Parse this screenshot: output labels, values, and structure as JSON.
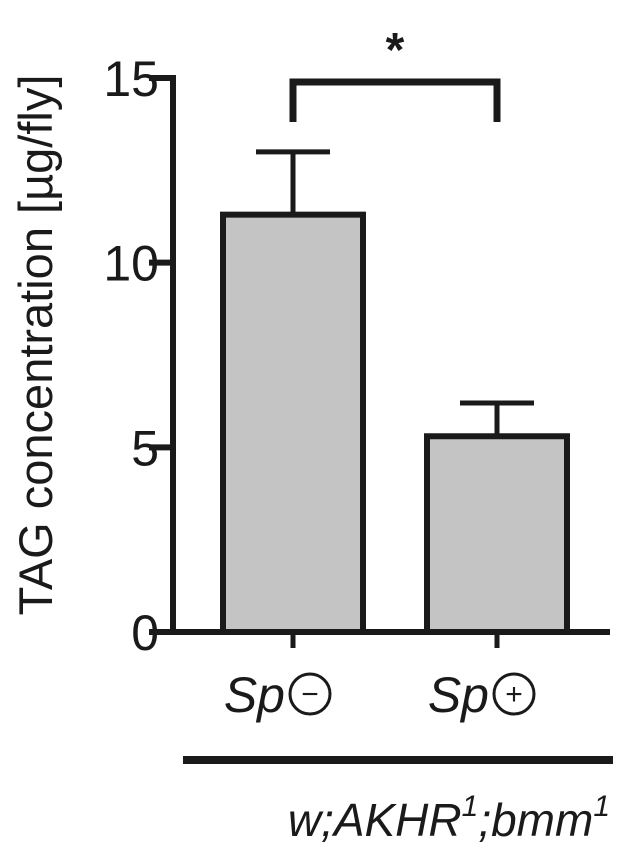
{
  "chart_data": {
    "type": "bar",
    "title": "",
    "ylabel": "TAG concentration [µg/fly]",
    "xlabel": "",
    "ylim": [
      0,
      15
    ],
    "yticks": [
      0,
      5,
      10,
      15
    ],
    "categories": [
      {
        "prefix": "Sp",
        "symbol": "−"
      },
      {
        "prefix": "Sp",
        "symbol": "+"
      }
    ],
    "values": [
      11.3,
      5.3
    ],
    "errors": [
      1.7,
      0.9
    ],
    "bar_color": "#c4c4c4",
    "stroke_color": "#1a1a1a",
    "significance": {
      "label": "*",
      "between": [
        0,
        1
      ]
    },
    "genotype": {
      "base1": "w;AKHR",
      "sup1": "1",
      "base2": ";bmm",
      "sup2": "1"
    },
    "grid": false,
    "legend": "none"
  }
}
